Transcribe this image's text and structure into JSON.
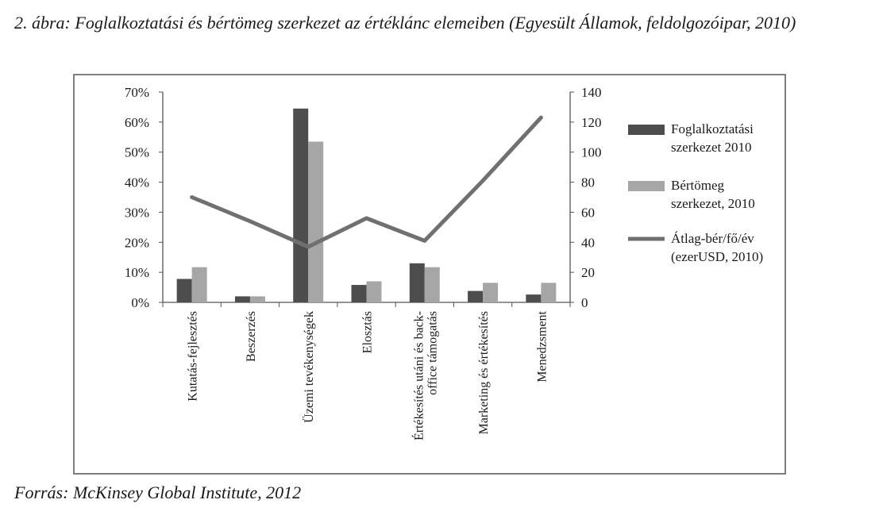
{
  "figure": {
    "caption": "2. ábra: Foglalkoztatási és bértömeg szerkezet az értéklánc elemeiben (Egyesült Államok, feldolgozóipar, 2010)",
    "source": "Forrás: McKinsey Global Institute, 2012"
  },
  "chart_data": {
    "type": "bar",
    "categories": [
      [
        "Kutatás-fejlesztés"
      ],
      [
        "Beszerzés"
      ],
      [
        "Üzemi tevékenységek"
      ],
      [
        "Elosztás"
      ],
      [
        "Értékesítés utáni és back-",
        "office támogatás"
      ],
      [
        "Marketing és értékesítés"
      ],
      [
        "Menedzsment"
      ]
    ],
    "series": [
      {
        "name": "Foglalkoztatási szerkezet 2010",
        "legend_lines": [
          "Foglalkoztatási",
          "szerkezet 2010"
        ],
        "kind": "bar",
        "axis": "left",
        "color": "#4d4d4d",
        "values": [
          7.8,
          2.0,
          64.5,
          5.8,
          13.0,
          3.8,
          2.6
        ]
      },
      {
        "name": "Bértömeg szerkezet, 2010",
        "legend_lines": [
          "Bértömeg",
          "szerkezet, 2010"
        ],
        "kind": "bar",
        "axis": "left",
        "color": "#a6a6a6",
        "values": [
          11.7,
          2.0,
          53.5,
          7.0,
          11.7,
          6.5,
          6.5
        ]
      },
      {
        "name": "Átlag-bér/fő/év (ezerUSD, 2010)",
        "legend_lines": [
          "Átlag-bér/fő/év",
          "(ezerUSD, 2010)"
        ],
        "kind": "line",
        "axis": "right",
        "color": "#707070",
        "values": [
          70,
          54,
          37,
          56,
          41,
          81,
          123
        ]
      }
    ],
    "y_left": {
      "min": 0,
      "max": 70,
      "step": 10,
      "unit": "%"
    },
    "y_right": {
      "min": 0,
      "max": 140,
      "step": 20
    },
    "legend_position": "right",
    "grid": false
  }
}
